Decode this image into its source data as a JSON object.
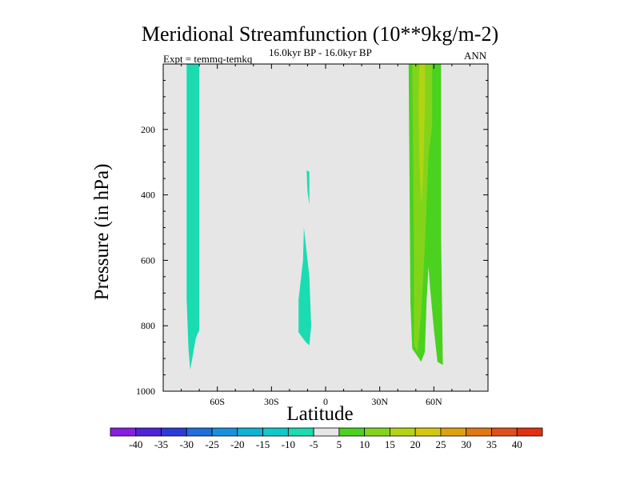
{
  "title": "Meridional Streamfunction (10**9kg/m-2)",
  "subtitle": "16.0kyr BP - 16.0kyr BP",
  "experiment": "Expt = temmq-temkq",
  "season": "ANN",
  "chart_data": {
    "type": "contour",
    "xlabel": "Latitude",
    "ylabel": "Pressure (in hPa)",
    "xlim": [
      -90,
      90
    ],
    "ylim": [
      1000,
      0
    ],
    "x_ticks": [
      {
        "value": -60,
        "label": "60S"
      },
      {
        "value": -30,
        "label": "30S"
      },
      {
        "value": 0,
        "label": "0"
      },
      {
        "value": 30,
        "label": "30N"
      },
      {
        "value": 60,
        "label": "60N"
      }
    ],
    "y_ticks": [
      200,
      400,
      600,
      800,
      1000
    ],
    "background_color": "#e6e6e6",
    "colorbar": {
      "labels": [
        "-40",
        "-35",
        "-30",
        "-25",
        "-20",
        "-15",
        "-10",
        "-5",
        "5",
        "10",
        "15",
        "20",
        "25",
        "30",
        "35",
        "40"
      ],
      "colors": [
        "#8a1ee0",
        "#5022d8",
        "#2a3cd8",
        "#1f6fdc",
        "#1891dc",
        "#10b2d6",
        "#12c8c8",
        "#1adcb0",
        "#e6e6e6",
        "#4ad21e",
        "#82d41a",
        "#b2d414",
        "#d6c80e",
        "#e0a00e",
        "#e07814",
        "#e0501c",
        "#e0300e"
      ]
    },
    "regions": [
      {
        "name": "southern-polar-cell-negative",
        "level": -7.5,
        "color": "#1adcb0",
        "points": [
          [
            -77,
            0
          ],
          [
            -70,
            0
          ],
          [
            -70,
            815
          ],
          [
            -71,
            825
          ],
          [
            -72,
            840
          ],
          [
            -75,
            935
          ],
          [
            -76,
            870
          ],
          [
            -77,
            720
          ]
        ]
      },
      {
        "name": "tropical-small-negative",
        "level": -7.5,
        "color": "#1adcb0",
        "points": [
          [
            -10.5,
            325
          ],
          [
            -9,
            330
          ],
          [
            -9,
            430
          ],
          [
            -10,
            390
          ]
        ]
      },
      {
        "name": "tropical-negative-lobe",
        "level": -7.5,
        "color": "#1adcb0",
        "points": [
          [
            -12,
            500
          ],
          [
            -9,
            650
          ],
          [
            -8,
            800
          ],
          [
            -9,
            860
          ],
          [
            -11,
            850
          ],
          [
            -15,
            820
          ],
          [
            -15,
            720
          ],
          [
            -12.5,
            600
          ]
        ]
      },
      {
        "name": "northern-positive-outer",
        "level": 7.5,
        "color": "#4ad21e",
        "points": [
          [
            46,
            0
          ],
          [
            64,
            0
          ],
          [
            64,
            540
          ],
          [
            65,
            920
          ],
          [
            62,
            910
          ],
          [
            60,
            810
          ],
          [
            58,
            690
          ],
          [
            57,
            620
          ],
          [
            56,
            720
          ],
          [
            55,
            880
          ],
          [
            53,
            910
          ],
          [
            48,
            870
          ],
          [
            47,
            730
          ]
        ]
      },
      {
        "name": "northern-positive-inner",
        "level": 12.5,
        "color": "#82d41a",
        "points": [
          [
            48,
            0
          ],
          [
            59,
            0
          ],
          [
            59,
            190
          ],
          [
            57,
            280
          ],
          [
            56,
            420
          ],
          [
            55,
            560
          ],
          [
            53,
            760
          ],
          [
            51,
            880
          ],
          [
            49,
            860
          ],
          [
            49,
            560
          ]
        ]
      },
      {
        "name": "northern-positive-core",
        "level": 17.5,
        "color": "#b2d414",
        "points": [
          [
            52,
            0
          ],
          [
            55,
            0
          ],
          [
            55,
            130
          ],
          [
            54,
            350
          ],
          [
            53,
            430
          ],
          [
            52,
            300
          ],
          [
            51.5,
            120
          ]
        ]
      }
    ]
  }
}
